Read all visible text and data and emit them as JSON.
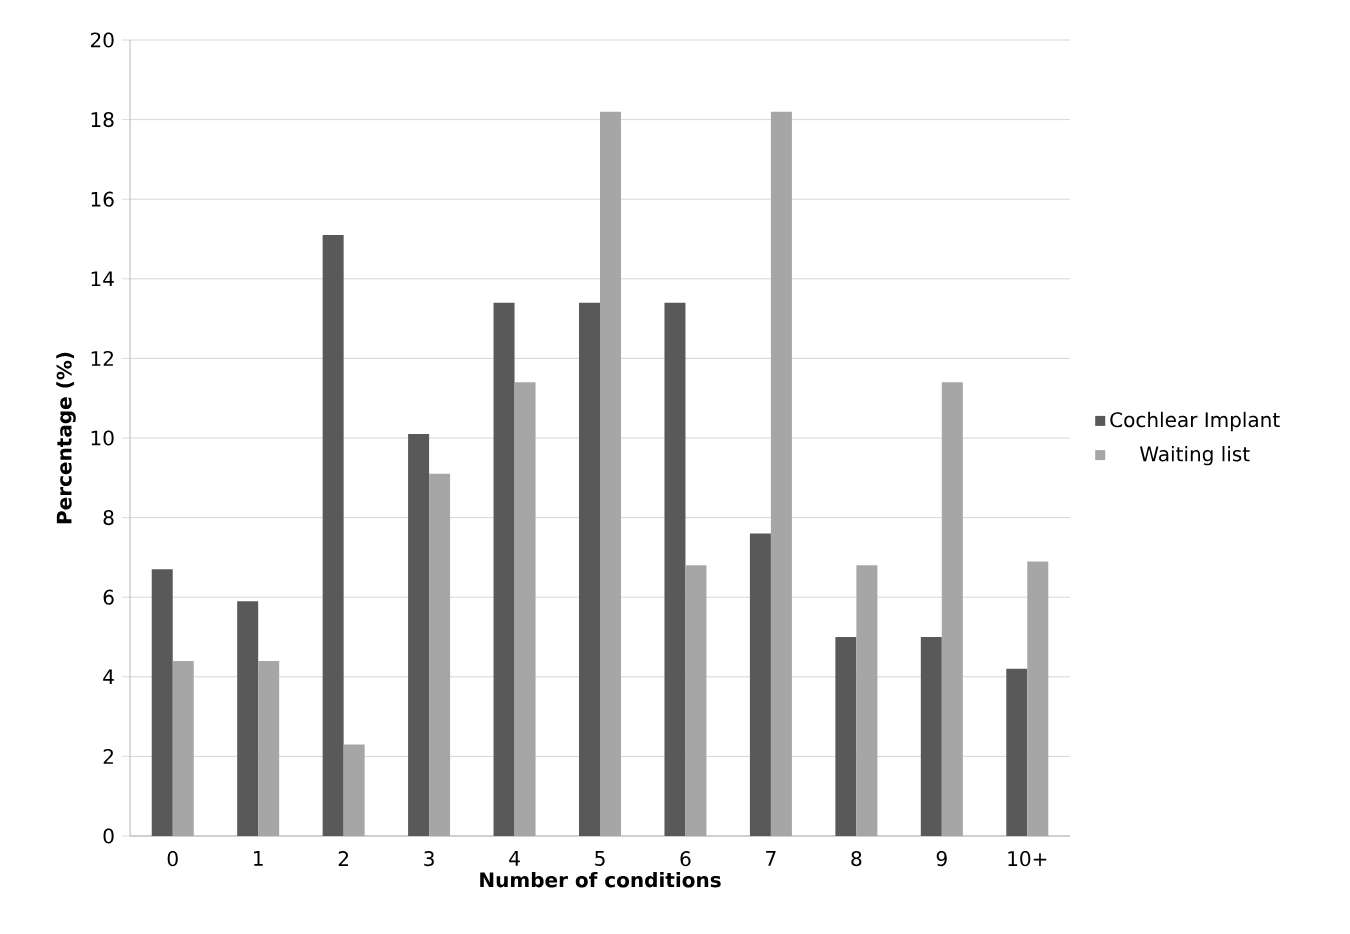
{
  "chart_data": {
    "type": "bar",
    "xlabel": "Number of conditions",
    "ylabel": "Percentage (%)",
    "categories": [
      "0",
      "1",
      "2",
      "3",
      "4",
      "5",
      "6",
      "7",
      "8",
      "9",
      "10+"
    ],
    "series": [
      {
        "name": "Cochlear Implant",
        "color": "#595959",
        "values": [
          6.7,
          5.9,
          15.1,
          10.1,
          13.4,
          13.4,
          13.4,
          7.6,
          5.0,
          5.0,
          4.2
        ]
      },
      {
        "name": "Waiting list",
        "color": "#a6a6a6",
        "values": [
          4.4,
          4.4,
          2.3,
          9.1,
          11.4,
          18.2,
          6.8,
          18.2,
          6.8,
          11.4,
          6.9
        ]
      }
    ],
    "ylim": [
      0,
      20
    ],
    "yticks": [
      0,
      2,
      4,
      6,
      8,
      10,
      12,
      14,
      16,
      18,
      20
    ],
    "grid": "y",
    "legend": "right"
  }
}
